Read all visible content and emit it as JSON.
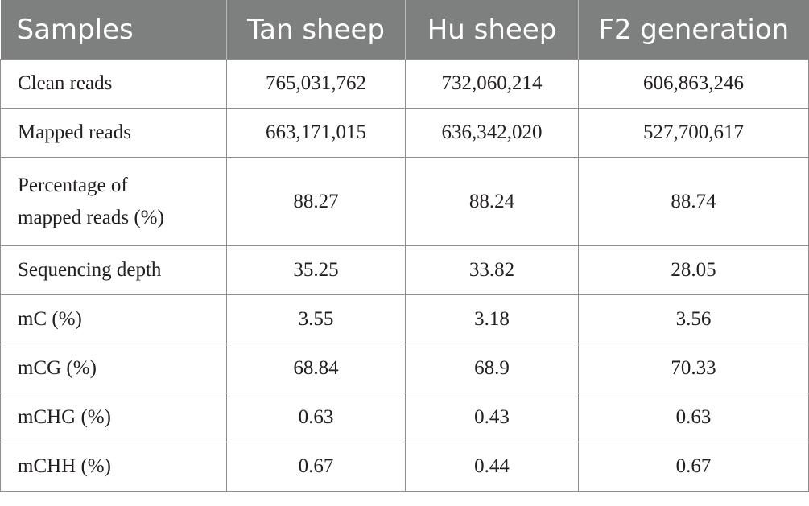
{
  "table": {
    "headers": [
      "Samples",
      "Tan sheep",
      "Hu sheep",
      "F2 generation"
    ],
    "rows": [
      {
        "label": "Clean reads",
        "values": [
          "765,031,762",
          "732,060,214",
          "606,863,246"
        ]
      },
      {
        "label": "Mapped reads",
        "values": [
          "663,171,015",
          "636,342,020",
          "527,700,617"
        ]
      },
      {
        "label": "Percentage of mapped reads (%)",
        "values": [
          "88.27",
          "88.24",
          "88.74"
        ]
      },
      {
        "label": "Sequencing depth",
        "values": [
          "35.25",
          "33.82",
          "28.05"
        ]
      },
      {
        "label": "mC (%)",
        "values": [
          "3.55",
          "3.18",
          "3.56"
        ]
      },
      {
        "label": "mCG (%)",
        "values": [
          "68.84",
          "68.9",
          "70.33"
        ]
      },
      {
        "label": "mCHG (%)",
        "values": [
          "0.63",
          "0.43",
          "0.63"
        ]
      },
      {
        "label": "mCHH (%)",
        "values": [
          "0.67",
          "0.44",
          "0.67"
        ]
      }
    ]
  }
}
